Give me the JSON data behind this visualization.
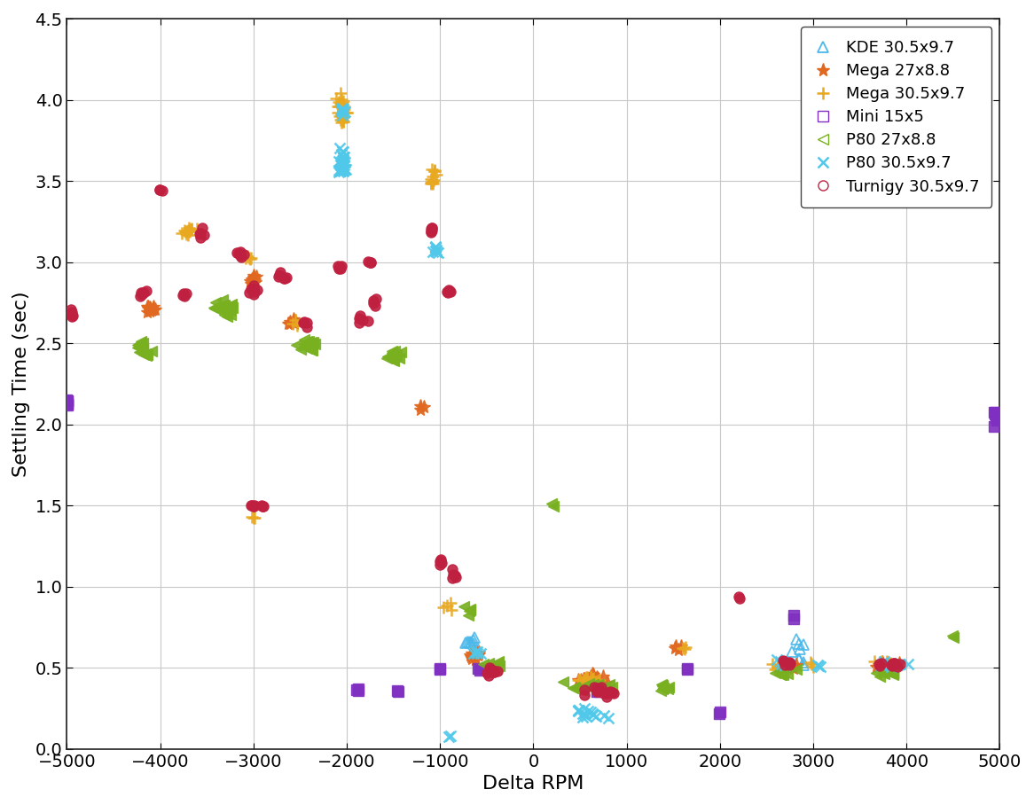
{
  "xlabel": "Delta RPM",
  "ylabel": "Settling Time (sec)",
  "xlim": [
    -5000,
    5000
  ],
  "ylim": [
    0,
    4.5
  ],
  "xticks": [
    -5000,
    -4000,
    -3000,
    -2000,
    -1000,
    0,
    1000,
    2000,
    3000,
    4000,
    5000
  ],
  "yticks": [
    0,
    0.5,
    1,
    1.5,
    2,
    2.5,
    3,
    3.5,
    4,
    4.5
  ],
  "series": {
    "KDE 30.5x9.7": {
      "color": "#4BB8E8",
      "marker": "^",
      "markersize": 7,
      "fillstyle": "none",
      "clusters": [
        {
          "x_center": -700,
          "y_center": 0.65,
          "x_spread": 80,
          "y_spread": 0.06,
          "n": 8
        },
        {
          "x_center": 2850,
          "y_center": 0.63,
          "x_spread": 80,
          "y_spread": 0.05,
          "n": 5
        },
        {
          "x_center": 2850,
          "y_center": 0.55,
          "x_spread": 80,
          "y_spread": 0.04,
          "n": 4
        }
      ]
    },
    "Mega 27x8.8": {
      "color": "#E06820",
      "marker": "*",
      "markersize": 9,
      "fillstyle": "full",
      "clusters": [
        {
          "x_center": -4100,
          "y_center": 2.72,
          "x_spread": 60,
          "y_spread": 0.04,
          "n": 15
        },
        {
          "x_center": -3000,
          "y_center": 2.9,
          "x_spread": 60,
          "y_spread": 0.05,
          "n": 10
        },
        {
          "x_center": -2600,
          "y_center": 2.62,
          "x_spread": 60,
          "y_spread": 0.04,
          "n": 8
        },
        {
          "x_center": -1200,
          "y_center": 2.1,
          "x_spread": 30,
          "y_spread": 0.02,
          "n": 3
        },
        {
          "x_center": -650,
          "y_center": 0.57,
          "x_spread": 80,
          "y_spread": 0.05,
          "n": 10
        },
        {
          "x_center": 600,
          "y_center": 0.43,
          "x_spread": 200,
          "y_spread": 0.04,
          "n": 20
        },
        {
          "x_center": 1550,
          "y_center": 0.62,
          "x_spread": 60,
          "y_spread": 0.03,
          "n": 4
        },
        {
          "x_center": 2800,
          "y_center": 0.52,
          "x_spread": 80,
          "y_spread": 0.03,
          "n": 5
        },
        {
          "x_center": 3800,
          "y_center": 0.51,
          "x_spread": 200,
          "y_spread": 0.03,
          "n": 10
        }
      ]
    },
    "Mega 30.5x9.7": {
      "color": "#E8A820",
      "marker": "+",
      "markersize": 9,
      "fillstyle": "full",
      "clusters": [
        {
          "x_center": -3700,
          "y_center": 3.2,
          "x_spread": 100,
          "y_spread": 0.05,
          "n": 15
        },
        {
          "x_center": -3050,
          "y_center": 3.03,
          "x_spread": 40,
          "y_spread": 0.03,
          "n": 5
        },
        {
          "x_center": -2550,
          "y_center": 2.63,
          "x_spread": 40,
          "y_spread": 0.03,
          "n": 3
        },
        {
          "x_center": -2050,
          "y_center": 3.93,
          "x_spread": 60,
          "y_spread": 0.12,
          "n": 30
        },
        {
          "x_center": -3000,
          "y_center": 1.43,
          "x_spread": 30,
          "y_spread": 0.02,
          "n": 3
        },
        {
          "x_center": -1080,
          "y_center": 3.5,
          "x_spread": 60,
          "y_spread": 0.03,
          "n": 8
        },
        {
          "x_center": -900,
          "y_center": 0.88,
          "x_spread": 60,
          "y_spread": 0.03,
          "n": 4
        },
        {
          "x_center": 600,
          "y_center": 0.43,
          "x_spread": 200,
          "y_spread": 0.04,
          "n": 15
        },
        {
          "x_center": 1620,
          "y_center": 0.62,
          "x_spread": 40,
          "y_spread": 0.03,
          "n": 3
        },
        {
          "x_center": 2600,
          "y_center": 0.52,
          "x_spread": 60,
          "y_spread": 0.03,
          "n": 4
        },
        {
          "x_center": 3000,
          "y_center": 0.52,
          "x_spread": 40,
          "y_spread": 0.02,
          "n": 3
        },
        {
          "x_center": -1050,
          "y_center": 3.55,
          "x_spread": 60,
          "y_spread": 0.04,
          "n": 5
        },
        {
          "x_center": 3800,
          "y_center": 0.52,
          "x_spread": 200,
          "y_spread": 0.03,
          "n": 10
        }
      ]
    },
    "Mini 15x5": {
      "color": "#8040C0",
      "marker": "s",
      "markersize": 8,
      "fillstyle": "full",
      "clusters": [
        {
          "x_center": -5000,
          "y_center": 2.14,
          "x_spread": 20,
          "y_spread": 0.04,
          "n": 8
        },
        {
          "x_center": -1900,
          "y_center": 0.37,
          "x_spread": 60,
          "y_spread": 0.02,
          "n": 3
        },
        {
          "x_center": -1000,
          "y_center": 0.49,
          "x_spread": 30,
          "y_spread": 0.02,
          "n": 2
        },
        {
          "x_center": -1450,
          "y_center": 0.36,
          "x_spread": 30,
          "y_spread": 0.02,
          "n": 2
        },
        {
          "x_center": 700,
          "y_center": 0.35,
          "x_spread": 40,
          "y_spread": 0.02,
          "n": 2
        },
        {
          "x_center": -600,
          "y_center": 0.5,
          "x_spread": 30,
          "y_spread": 0.02,
          "n": 2
        },
        {
          "x_center": 1650,
          "y_center": 0.5,
          "x_spread": 30,
          "y_spread": 0.02,
          "n": 2
        },
        {
          "x_center": 2000,
          "y_center": 0.22,
          "x_spread": 30,
          "y_spread": 0.01,
          "n": 2
        },
        {
          "x_center": 2800,
          "y_center": 0.82,
          "x_spread": 20,
          "y_spread": 0.02,
          "n": 2
        },
        {
          "x_center": 4950,
          "y_center": 2.05,
          "x_spread": 20,
          "y_spread": 0.06,
          "n": 8
        }
      ]
    },
    "P80 27x8.8": {
      "color": "#78B020",
      "marker": "<",
      "markersize": 8,
      "fillstyle": "full",
      "clusters": [
        {
          "x_center": -4200,
          "y_center": 2.47,
          "x_spread": 100,
          "y_spread": 0.06,
          "n": 20
        },
        {
          "x_center": -3300,
          "y_center": 2.72,
          "x_spread": 120,
          "y_spread": 0.06,
          "n": 25
        },
        {
          "x_center": -2400,
          "y_center": 2.5,
          "x_spread": 120,
          "y_spread": 0.06,
          "n": 20
        },
        {
          "x_center": -1500,
          "y_center": 2.42,
          "x_spread": 120,
          "y_spread": 0.06,
          "n": 15
        },
        {
          "x_center": 200,
          "y_center": 1.5,
          "x_spread": 30,
          "y_spread": 0.02,
          "n": 2
        },
        {
          "x_center": -400,
          "y_center": 0.52,
          "x_spread": 150,
          "y_spread": 0.04,
          "n": 12
        },
        {
          "x_center": 600,
          "y_center": 0.38,
          "x_spread": 250,
          "y_spread": 0.04,
          "n": 20
        },
        {
          "x_center": 1400,
          "y_center": 0.38,
          "x_spread": 100,
          "y_spread": 0.03,
          "n": 8
        },
        {
          "x_center": 2700,
          "y_center": 0.47,
          "x_spread": 120,
          "y_spread": 0.03,
          "n": 8
        },
        {
          "x_center": -700,
          "y_center": 0.85,
          "x_spread": 60,
          "y_spread": 0.04,
          "n": 5
        },
        {
          "x_center": 3800,
          "y_center": 0.47,
          "x_spread": 200,
          "y_spread": 0.03,
          "n": 10
        },
        {
          "x_center": 4500,
          "y_center": 0.7,
          "x_spread": 30,
          "y_spread": 0.02,
          "n": 2
        }
      ]
    },
    "P80 30.5x9.7": {
      "color": "#50C8E8",
      "marker": "x",
      "markersize": 8,
      "fillstyle": "full",
      "clusters": [
        {
          "x_center": -2050,
          "y_center": 3.6,
          "x_spread": 60,
          "y_spread": 0.12,
          "n": 30
        },
        {
          "x_center": -2050,
          "y_center": 3.95,
          "x_spread": 40,
          "y_spread": 0.04,
          "n": 10
        },
        {
          "x_center": -1050,
          "y_center": 3.08,
          "x_spread": 60,
          "y_spread": 0.04,
          "n": 8
        },
        {
          "x_center": -600,
          "y_center": 0.6,
          "x_spread": 60,
          "y_spread": 0.03,
          "n": 5
        },
        {
          "x_center": -900,
          "y_center": 0.08,
          "x_spread": 20,
          "y_spread": 0.02,
          "n": 2
        },
        {
          "x_center": 600,
          "y_center": 0.22,
          "x_spread": 200,
          "y_spread": 0.04,
          "n": 15
        },
        {
          "x_center": 2650,
          "y_center": 0.52,
          "x_spread": 80,
          "y_spread": 0.03,
          "n": 5
        },
        {
          "x_center": 3050,
          "y_center": 0.52,
          "x_spread": 40,
          "y_spread": 0.02,
          "n": 3
        },
        {
          "x_center": 3800,
          "y_center": 0.52,
          "x_spread": 200,
          "y_spread": 0.03,
          "n": 8
        }
      ]
    },
    "Turnigy 30.5x9.7": {
      "color": "#C02040",
      "marker": "o",
      "markersize": 7,
      "fillstyle": "full",
      "clusters": [
        {
          "x_center": -4950,
          "y_center": 2.68,
          "x_spread": 20,
          "y_spread": 0.03,
          "n": 5
        },
        {
          "x_center": -4200,
          "y_center": 2.8,
          "x_spread": 80,
          "y_spread": 0.04,
          "n": 6
        },
        {
          "x_center": -4000,
          "y_center": 3.45,
          "x_spread": 30,
          "y_spread": 0.03,
          "n": 3
        },
        {
          "x_center": -3750,
          "y_center": 2.8,
          "x_spread": 60,
          "y_spread": 0.03,
          "n": 4
        },
        {
          "x_center": -3150,
          "y_center": 3.05,
          "x_spread": 80,
          "y_spread": 0.04,
          "n": 8
        },
        {
          "x_center": -3000,
          "y_center": 2.83,
          "x_spread": 60,
          "y_spread": 0.04,
          "n": 8
        },
        {
          "x_center": -2700,
          "y_center": 2.92,
          "x_spread": 80,
          "y_spread": 0.04,
          "n": 6
        },
        {
          "x_center": -2450,
          "y_center": 2.62,
          "x_spread": 60,
          "y_spread": 0.03,
          "n": 4
        },
        {
          "x_center": -2100,
          "y_center": 2.97,
          "x_spread": 60,
          "y_spread": 0.03,
          "n": 5
        },
        {
          "x_center": -1850,
          "y_center": 2.65,
          "x_spread": 60,
          "y_spread": 0.04,
          "n": 5
        },
        {
          "x_center": -1750,
          "y_center": 3.0,
          "x_spread": 50,
          "y_spread": 0.03,
          "n": 4
        },
        {
          "x_center": -3000,
          "y_center": 1.5,
          "x_spread": 50,
          "y_spread": 0.01,
          "n": 5
        },
        {
          "x_center": -2900,
          "y_center": 1.5,
          "x_spread": 30,
          "y_spread": 0.01,
          "n": 4
        },
        {
          "x_center": -3550,
          "y_center": 3.18,
          "x_spread": 60,
          "y_spread": 0.04,
          "n": 5
        },
        {
          "x_center": -450,
          "y_center": 0.47,
          "x_spread": 100,
          "y_spread": 0.03,
          "n": 10
        },
        {
          "x_center": -1100,
          "y_center": 3.2,
          "x_spread": 30,
          "y_spread": 0.04,
          "n": 6
        },
        {
          "x_center": -900,
          "y_center": 2.82,
          "x_spread": 30,
          "y_spread": 0.04,
          "n": 5
        },
        {
          "x_center": -1700,
          "y_center": 2.75,
          "x_spread": 30,
          "y_spread": 0.04,
          "n": 4
        },
        {
          "x_center": 700,
          "y_center": 0.35,
          "x_spread": 250,
          "y_spread": 0.04,
          "n": 20
        },
        {
          "x_center": 2200,
          "y_center": 0.93,
          "x_spread": 30,
          "y_spread": 0.02,
          "n": 2
        },
        {
          "x_center": 2700,
          "y_center": 0.54,
          "x_spread": 100,
          "y_spread": 0.03,
          "n": 6
        },
        {
          "x_center": 3800,
          "y_center": 0.52,
          "x_spread": 200,
          "y_spread": 0.03,
          "n": 10
        },
        {
          "x_center": -1000,
          "y_center": 1.15,
          "x_spread": 30,
          "y_spread": 0.04,
          "n": 5
        },
        {
          "x_center": -850,
          "y_center": 1.07,
          "x_spread": 30,
          "y_spread": 0.04,
          "n": 5
        }
      ]
    }
  },
  "background_color": "#ffffff",
  "grid_color": "#c8c8c8",
  "tick_fontsize": 14,
  "label_fontsize": 16,
  "legend_fontsize": 13
}
